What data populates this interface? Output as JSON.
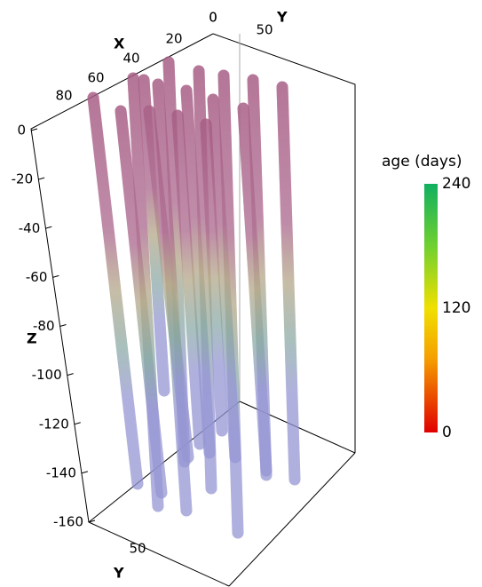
{
  "x_axis": {
    "label": "X",
    "ticks": [
      "80",
      "60",
      "40",
      "20",
      "0"
    ]
  },
  "y_axis_top": {
    "label": "Y",
    "ticks": [
      "0",
      "50"
    ]
  },
  "y_axis_bottom": {
    "label": "Y",
    "ticks": [
      "50"
    ]
  },
  "z_axis": {
    "label": "Z",
    "ticks": [
      "0",
      "-20",
      "-40",
      "-60",
      "-80",
      "-100",
      "-120",
      "-140",
      "-160"
    ]
  },
  "colorbar": {
    "title": "age (days)",
    "ticks": [
      "240",
      "120",
      "0"
    ]
  }
}
